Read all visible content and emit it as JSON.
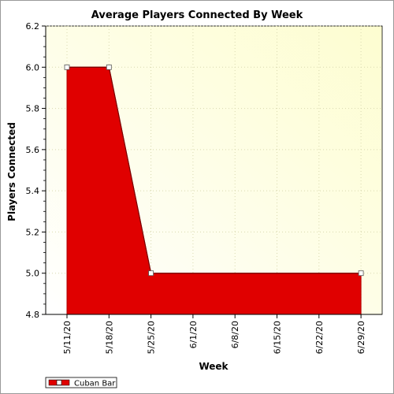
{
  "colors": {
    "area_fill": "#e00000",
    "area_stroke": "#b00000",
    "bg_light": "#ffffe6",
    "bg_white": "#ffffff",
    "grid": "#d9d9b0",
    "frame": "#9a9a9a"
  },
  "chart_data": {
    "type": "area",
    "title": "Average Players Connected By Week",
    "xlabel": "Week",
    "ylabel": "Players Connected",
    "ylim": [
      4.8,
      6.2
    ],
    "yticks": [
      "4.8",
      "5.0",
      "5.2",
      "5.4",
      "5.6",
      "5.8",
      "6.0",
      "6.2"
    ],
    "categories": [
      "5/11/20",
      "5/18/20",
      "5/25/20",
      "6/1/20",
      "6/8/20",
      "6/15/20",
      "6/22/20",
      "6/29/20"
    ],
    "series": [
      {
        "name": "Cuban Bar",
        "points": [
          {
            "x": "5/11/20",
            "y": 6.0
          },
          {
            "x": "5/18/20",
            "y": 6.0
          },
          {
            "x": "5/25/20",
            "y": 5.0
          },
          {
            "x": "6/29/20",
            "y": 5.0
          }
        ]
      }
    ],
    "grid": true,
    "legend_position": "bottom-left"
  }
}
